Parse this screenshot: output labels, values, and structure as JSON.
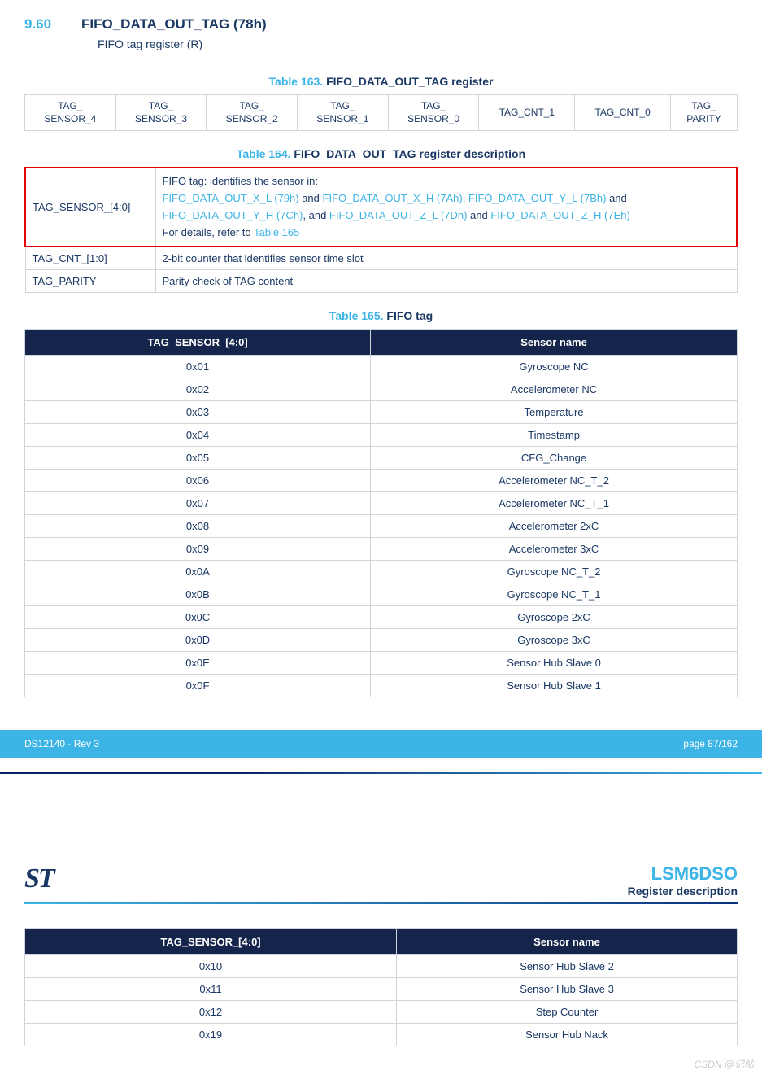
{
  "section": {
    "number": "9.60",
    "title": "FIFO_DATA_OUT_TAG (78h)",
    "subtitle": "FIFO tag register (R)"
  },
  "table163": {
    "caption_ref": "Table 163.",
    "caption_title": "FIFO_DATA_OUT_TAG register",
    "cells": [
      "TAG_\nSENSOR_4",
      "TAG_\nSENSOR_3",
      "TAG_\nSENSOR_2",
      "TAG_\nSENSOR_1",
      "TAG_\nSENSOR_0",
      "TAG_CNT_1",
      "TAG_CNT_0",
      "TAG_\nPARITY"
    ]
  },
  "table164": {
    "caption_ref": "Table 164.",
    "caption_title": "FIFO_DATA_OUT_TAG register description",
    "rows": [
      {
        "field": "TAG_SENSOR_[4:0]",
        "intro": "FIFO tag: identifies the sensor in:",
        "link1": "FIFO_DATA_OUT_X_L (79h)",
        "and1": " and ",
        "link2": "FIFO_DATA_OUT_X_H (7Ah)",
        "sep1": ", ",
        "link3": "FIFO_DATA_OUT_Y_L (7Bh)",
        "and2": " and ",
        "link4": "FIFO_DATA_OUT_Y_H (7Ch)",
        "sep2": ", and ",
        "link5": "FIFO_DATA_OUT_Z_L (7Dh)",
        "and3": " and ",
        "link6": "FIFO_DATA_OUT_Z_H (7Eh)",
        "detail_prefix": "For details, refer to ",
        "detail_link": "Table 165",
        "highlight": true
      },
      {
        "field": "TAG_CNT_[1:0]",
        "desc": "2-bit counter that identifies sensor time slot"
      },
      {
        "field": "TAG_PARITY",
        "desc": "Parity check of TAG content"
      }
    ]
  },
  "table165": {
    "caption_ref": "Table 165.",
    "caption_title": "FIFO tag",
    "headers": [
      "TAG_SENSOR_[4:0]",
      "Sensor name"
    ],
    "rows": [
      [
        "0x01",
        "Gyroscope NC"
      ],
      [
        "0x02",
        "Accelerometer NC"
      ],
      [
        "0x03",
        "Temperature"
      ],
      [
        "0x04",
        "Timestamp"
      ],
      [
        "0x05",
        "CFG_Change"
      ],
      [
        "0x06",
        "Accelerometer NC_T_2"
      ],
      [
        "0x07",
        "Accelerometer NC_T_1"
      ],
      [
        "0x08",
        "Accelerometer 2xC"
      ],
      [
        "0x09",
        "Accelerometer 3xC"
      ],
      [
        "0x0A",
        "Gyroscope NC_T_2"
      ],
      [
        "0x0B",
        "Gyroscope NC_T_1"
      ],
      [
        "0x0C",
        "Gyroscope 2xC"
      ],
      [
        "0x0D",
        "Gyroscope 3xC"
      ],
      [
        "0x0E",
        "Sensor Hub Slave 0"
      ],
      [
        "0x0F",
        "Sensor Hub Slave 1"
      ]
    ]
  },
  "footer": {
    "left": "DS12140 - Rev 3",
    "right": "page 87/162"
  },
  "next_page": {
    "logo": "ST",
    "title": "LSM6DSO",
    "subtitle": "Register description",
    "table": {
      "headers": [
        "TAG_SENSOR_[4:0]",
        "Sensor name"
      ],
      "rows": [
        [
          "0x10",
          "Sensor Hub Slave 2"
        ],
        [
          "0x11",
          "Sensor Hub Slave 3"
        ],
        [
          "0x12",
          "Step Counter"
        ],
        [
          "0x19",
          "Sensor Hub Nack"
        ]
      ]
    }
  },
  "watermark": "CSDN @记帖",
  "colors": {
    "accent": "#3cb4e6",
    "dark": "#1a3864",
    "header_bg": "#14244a",
    "highlight": "#e40000"
  }
}
